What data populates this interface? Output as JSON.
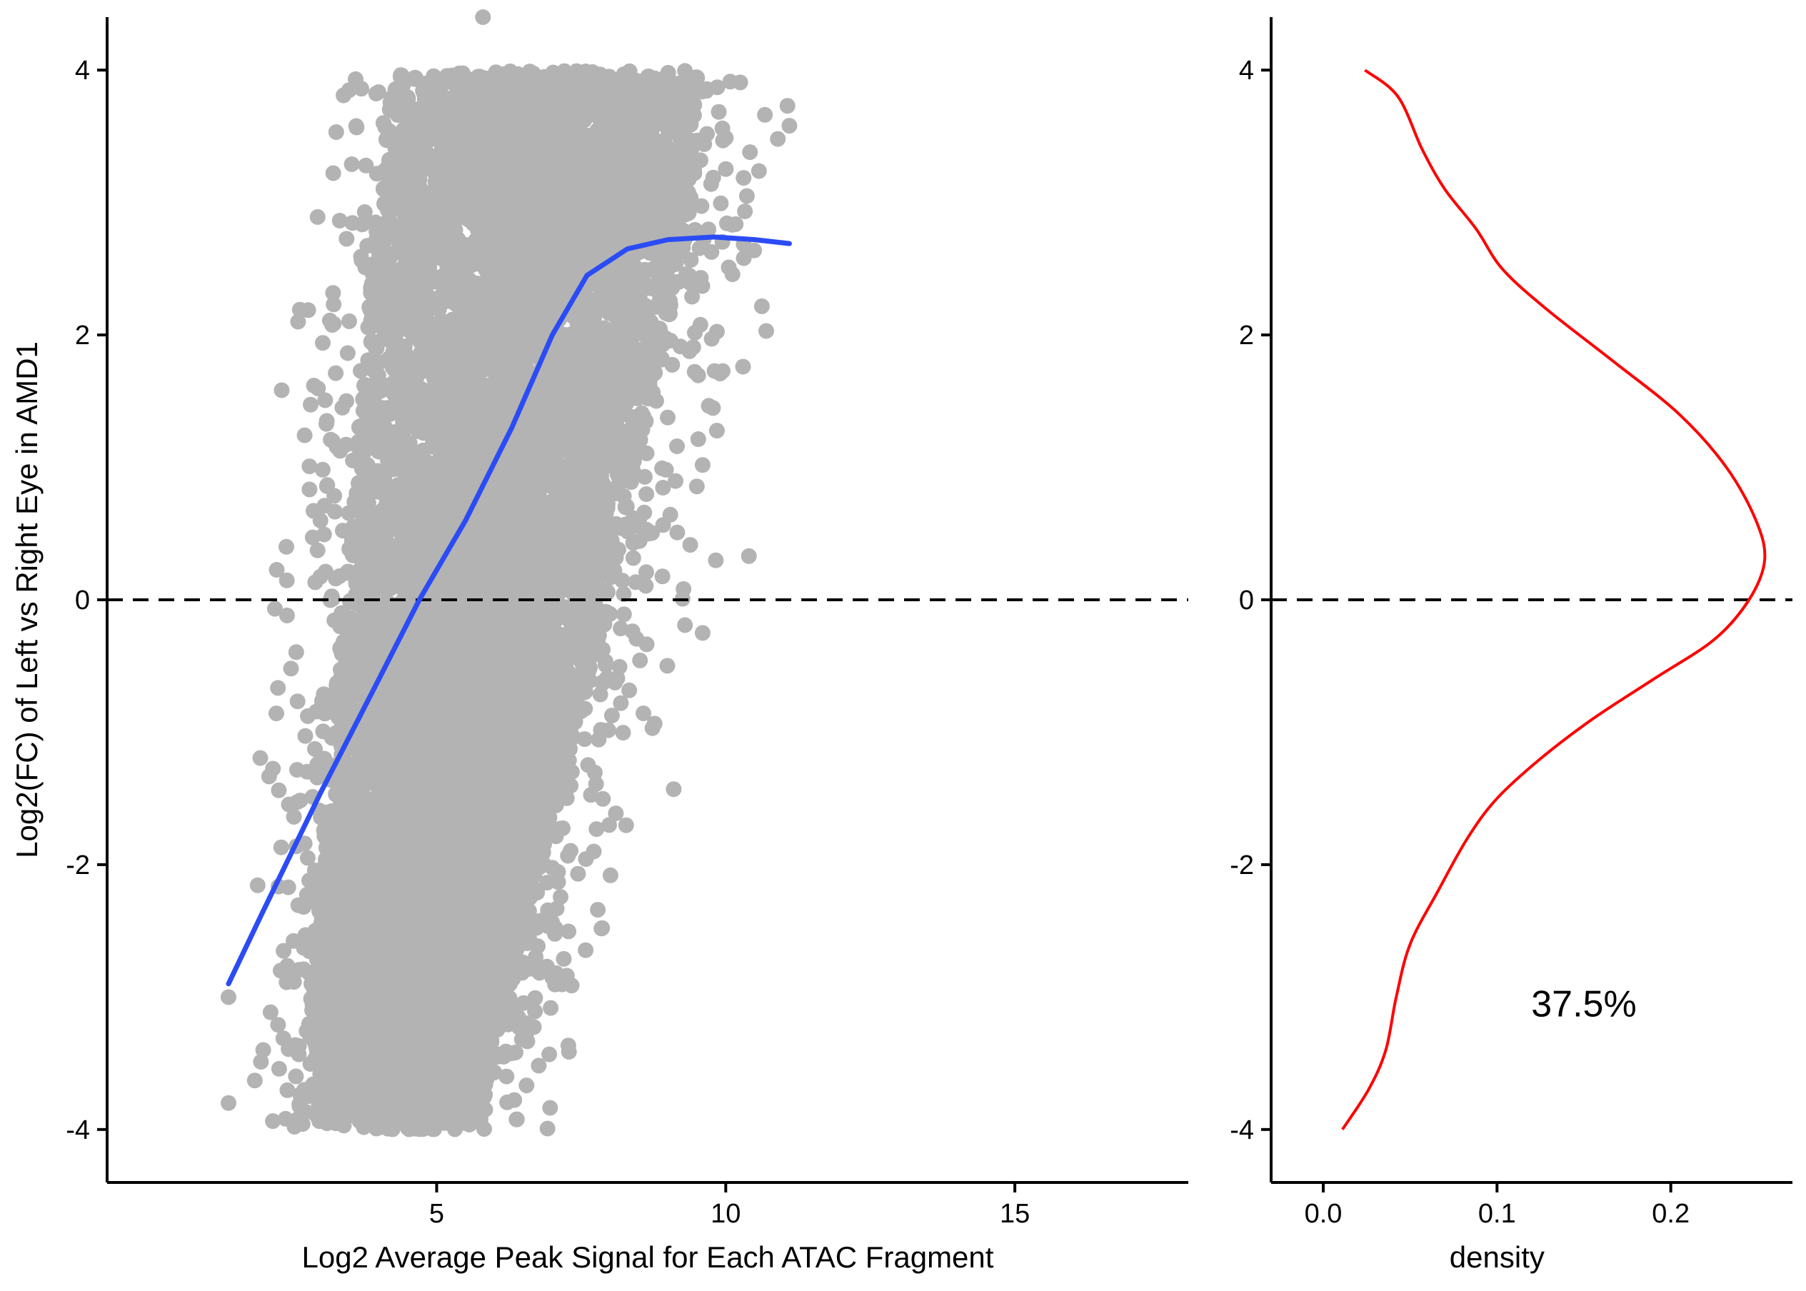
{
  "chart_data": [
    {
      "type": "scatter",
      "title": "",
      "xlabel": "Log2 Average Peak Signal for Each ATAC Fragment",
      "ylabel": "Log2(FC) of Left vs Right Eye in  AMD1",
      "xlim": [
        -0.7,
        18
      ],
      "ylim": [
        -4.4,
        4.4
      ],
      "x_ticks": [
        5,
        10,
        15
      ],
      "x_tick_labels": [
        "5",
        "10",
        "15"
      ],
      "y_ticks": [
        -4,
        -2,
        0,
        2,
        4
      ],
      "y_tick_labels": [
        "-4",
        "-2",
        "0",
        "2",
        "4"
      ],
      "grid": false,
      "legend": "none",
      "point_color": "#b3b3b3",
      "point_cloud": {
        "description_note": "",
        "ridge_x_at_y": [
          {
            "y": -4,
            "x_low": 2.4,
            "x_high": 6.5
          },
          {
            "y": -3,
            "x_low": 2.2,
            "x_high": 7.0
          },
          {
            "y": -2,
            "x_low": 2.4,
            "x_high": 7.6
          },
          {
            "y": -1,
            "x_low": 2.6,
            "x_high": 8.2
          },
          {
            "y": 0,
            "x_low": 2.8,
            "x_high": 8.8
          },
          {
            "y": 1,
            "x_low": 3.0,
            "x_high": 9.2
          },
          {
            "y": 2,
            "x_low": 3.2,
            "x_high": 9.8
          },
          {
            "y": 3,
            "x_low": 3.4,
            "x_high": 10.2
          },
          {
            "y": 4,
            "x_low": 3.6,
            "x_high": 10.4
          }
        ]
      },
      "reference_line": {
        "y": 0,
        "style": "dashed",
        "color": "#000000"
      },
      "smooth_line": {
        "color": "#2b4cf5",
        "points": [
          {
            "x": 1.4,
            "y": -2.9
          },
          {
            "x": 2.0,
            "y": -2.35
          },
          {
            "x": 3.0,
            "y": -1.45
          },
          {
            "x": 4.0,
            "y": -0.6
          },
          {
            "x": 4.7,
            "y": 0.0
          },
          {
            "x": 5.5,
            "y": 0.6
          },
          {
            "x": 6.3,
            "y": 1.3
          },
          {
            "x": 7.0,
            "y": 2.0
          },
          {
            "x": 7.6,
            "y": 2.45
          },
          {
            "x": 8.3,
            "y": 2.65
          },
          {
            "x": 9.0,
            "y": 2.72
          },
          {
            "x": 9.8,
            "y": 2.74
          },
          {
            "x": 10.5,
            "y": 2.72
          },
          {
            "x": 11.1,
            "y": 2.69
          }
        ]
      }
    },
    {
      "type": "line",
      "title": "",
      "xlabel": "density",
      "ylabel": "",
      "xlim": [
        -0.03,
        0.27
      ],
      "ylim": [
        -4.4,
        4.4
      ],
      "x_ticks": [
        0.0,
        0.1,
        0.2
      ],
      "x_tick_labels": [
        "0.0",
        "0.1",
        "0.2"
      ],
      "y_ticks": [
        -4,
        -2,
        0,
        2,
        4
      ],
      "y_tick_labels": [
        "-4",
        "-2",
        "0",
        "2",
        "4"
      ],
      "grid": false,
      "legend": "none",
      "line_color": "#ff0000",
      "reference_line": {
        "y": 0,
        "style": "dashed",
        "color": "#000000"
      },
      "density_curve": [
        {
          "y": -4.0,
          "density": 0.011
        },
        {
          "y": -3.7,
          "density": 0.026
        },
        {
          "y": -3.4,
          "density": 0.036
        },
        {
          "y": -3.0,
          "density": 0.042
        },
        {
          "y": -2.6,
          "density": 0.05
        },
        {
          "y": -2.2,
          "density": 0.066
        },
        {
          "y": -1.8,
          "density": 0.083
        },
        {
          "y": -1.5,
          "density": 0.1
        },
        {
          "y": -1.2,
          "density": 0.125
        },
        {
          "y": -0.9,
          "density": 0.155
        },
        {
          "y": -0.6,
          "density": 0.19
        },
        {
          "y": -0.3,
          "density": 0.225
        },
        {
          "y": 0.0,
          "density": 0.245
        },
        {
          "y": 0.3,
          "density": 0.254
        },
        {
          "y": 0.6,
          "density": 0.249
        },
        {
          "y": 1.0,
          "density": 0.232
        },
        {
          "y": 1.4,
          "density": 0.205
        },
        {
          "y": 1.8,
          "density": 0.167
        },
        {
          "y": 2.2,
          "density": 0.128
        },
        {
          "y": 2.5,
          "density": 0.103
        },
        {
          "y": 2.8,
          "density": 0.088
        },
        {
          "y": 3.1,
          "density": 0.07
        },
        {
          "y": 3.4,
          "density": 0.057
        },
        {
          "y": 3.8,
          "density": 0.043
        },
        {
          "y": 4.0,
          "density": 0.024
        }
      ],
      "annotations": [
        {
          "text": "37.5%",
          "x": 0.15,
          "y": -3.05
        }
      ]
    }
  ]
}
